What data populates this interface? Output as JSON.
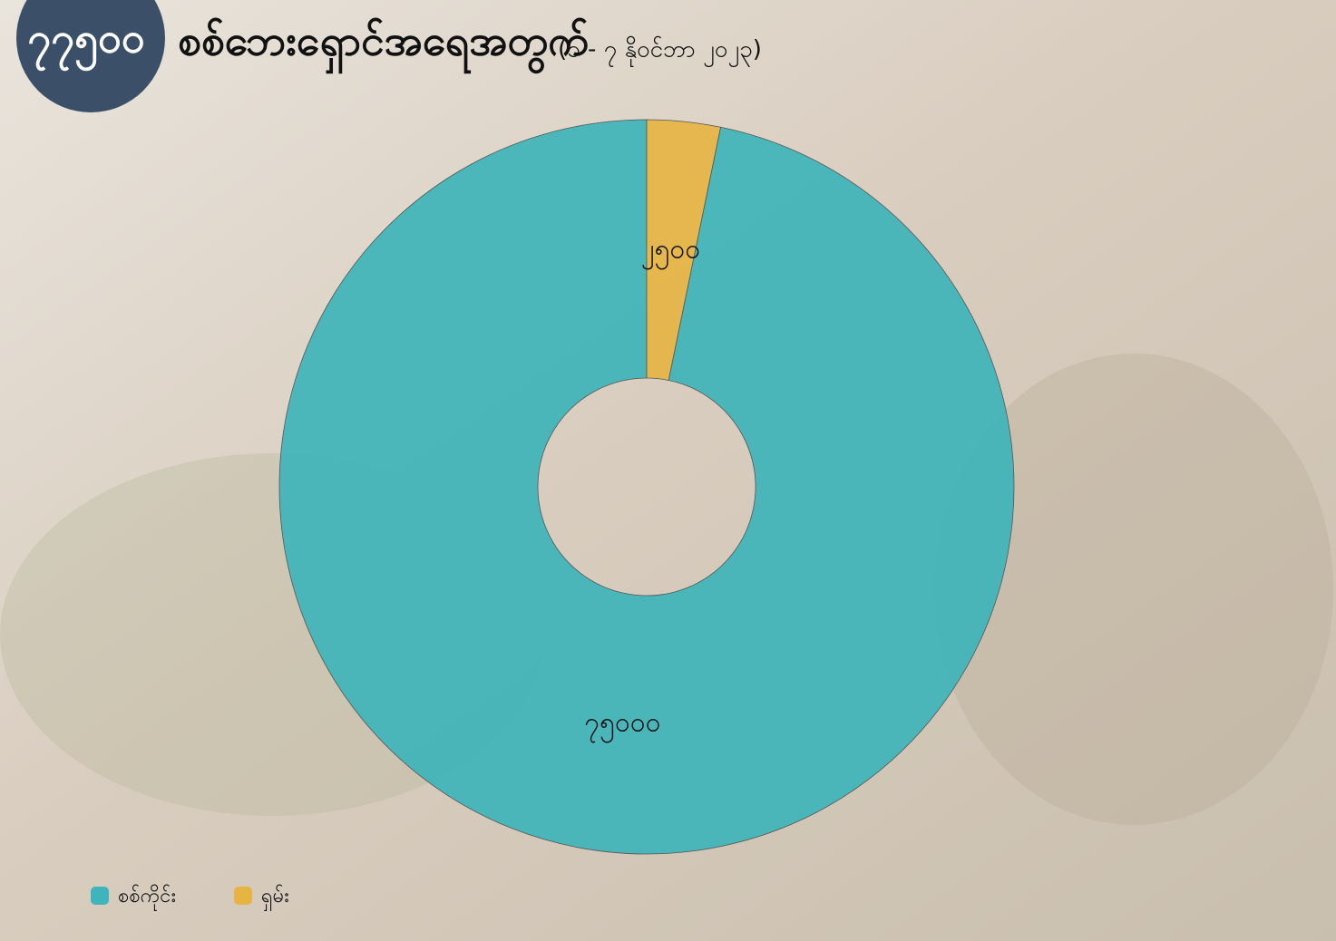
{
  "chart_data": {
    "type": "donut",
    "badge": "၇၇၅၀၀",
    "title": "စစ်ဘေးရှောင်အရေအတွက်",
    "subtitle": "(၁ - ၇ နိုဝင်ဘာ ၂၀၂၃)",
    "categories": [
      "စစ်ကိုင်း",
      "ရှမ်း"
    ],
    "values": [
      75000,
      2500
    ],
    "value_labels": [
      "၇၅၀၀၀",
      "၂၅၀၀"
    ],
    "colors": [
      "#3fb4ba",
      "#e6b443"
    ]
  }
}
